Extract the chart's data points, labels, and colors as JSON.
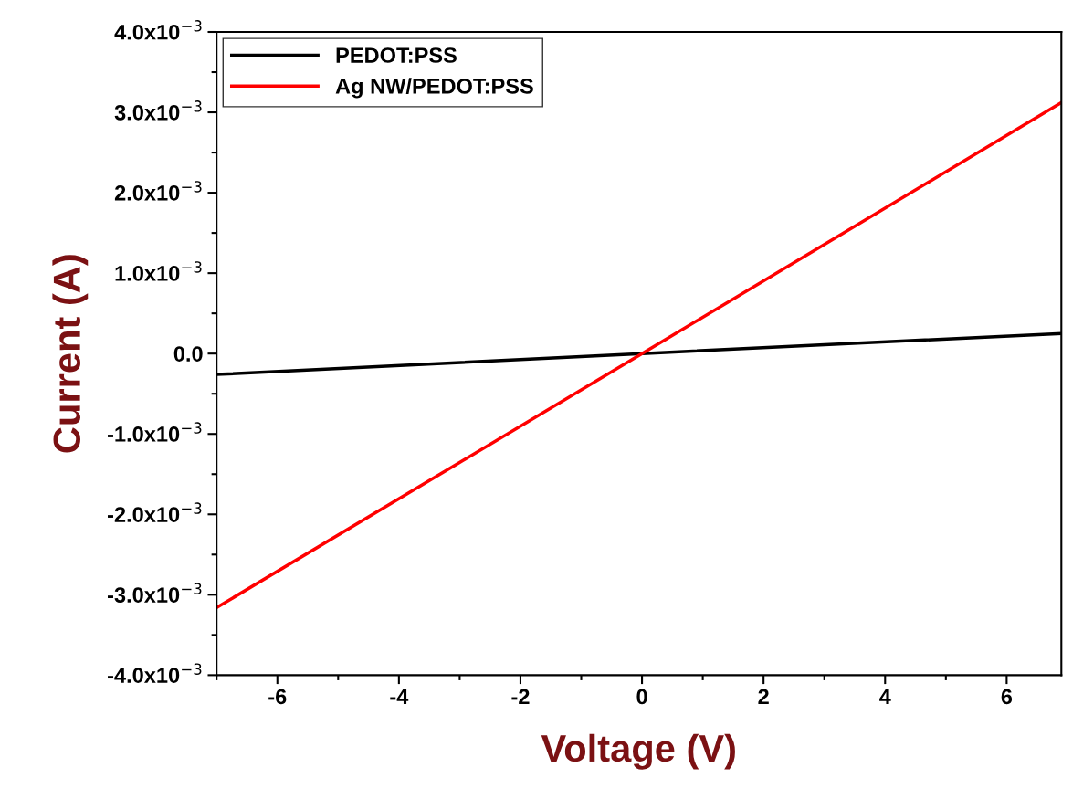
{
  "chart_data": {
    "type": "line",
    "xlabel": "Voltage (V)",
    "ylabel": "Current (A)",
    "x": [
      -7,
      0,
      6.9
    ],
    "series": [
      {
        "name": "PEDOT:PSS",
        "color": "#000000",
        "values": [
          -0.00026,
          0.0,
          0.00025
        ]
      },
      {
        "name": "Ag NW/PEDOT:PSS",
        "color": "#ff0000",
        "values": [
          -0.00316,
          0.0,
          0.00312
        ]
      }
    ],
    "xlim": [
      -7,
      6.9
    ],
    "xticks": [
      -6,
      -4,
      -2,
      0,
      2,
      4,
      6
    ],
    "ylim": [
      -0.004,
      0.004
    ],
    "yticks": [
      {
        "value": -0.004,
        "label": "-4.0x10$^{−3}$"
      },
      {
        "value": -0.003,
        "label": "-3.0x10$^{−3}$"
      },
      {
        "value": -0.002,
        "label": "-2.0x10$^{−3}$"
      },
      {
        "value": -0.001,
        "label": "-1.0x10$^{−3}$"
      },
      {
        "value": 0.0,
        "label": "0.0"
      },
      {
        "value": 0.001,
        "label": "1.0x10$^{−3}$"
      },
      {
        "value": 0.002,
        "label": "2.0x10$^{−3}$"
      },
      {
        "value": 0.003,
        "label": "3.0x10$^{−3}$"
      },
      {
        "value": 0.004,
        "label": "4.0x10$^{−3}$"
      }
    ],
    "legend": "top left",
    "grid": false,
    "marker": "none",
    "line_style": "solid"
  }
}
